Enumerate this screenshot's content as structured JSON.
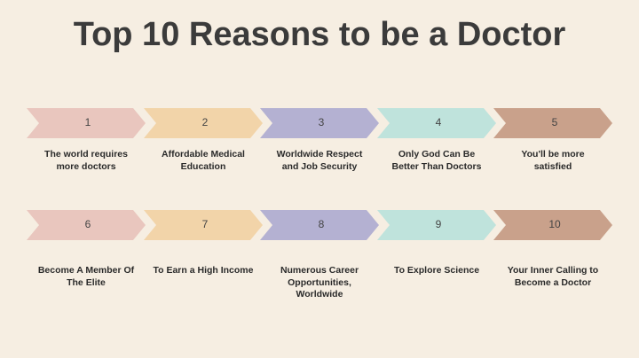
{
  "title": "Top 10 Reasons to be a Doctor",
  "rows": [
    [
      {
        "number": "1",
        "text": "The world requires more doctors"
      },
      {
        "number": "2",
        "text": "Affordable Medical Education"
      },
      {
        "number": "3",
        "text": "Worldwide Respect and Job Security"
      },
      {
        "number": "4",
        "text": "Only God Can Be Better Than Doctors"
      },
      {
        "number": "5",
        "text": "You'll be more satisfied"
      }
    ],
    [
      {
        "number": "6",
        "text": "Become A Member Of The Elite"
      },
      {
        "number": "7",
        "text": "To Earn a High Income"
      },
      {
        "number": "8",
        "text": "Numerous Career Opportunities, Worldwide"
      },
      {
        "number": "9",
        "text": "To Explore Science"
      },
      {
        "number": "10",
        "text": "Your Inner Calling to Become a Doctor"
      }
    ]
  ]
}
